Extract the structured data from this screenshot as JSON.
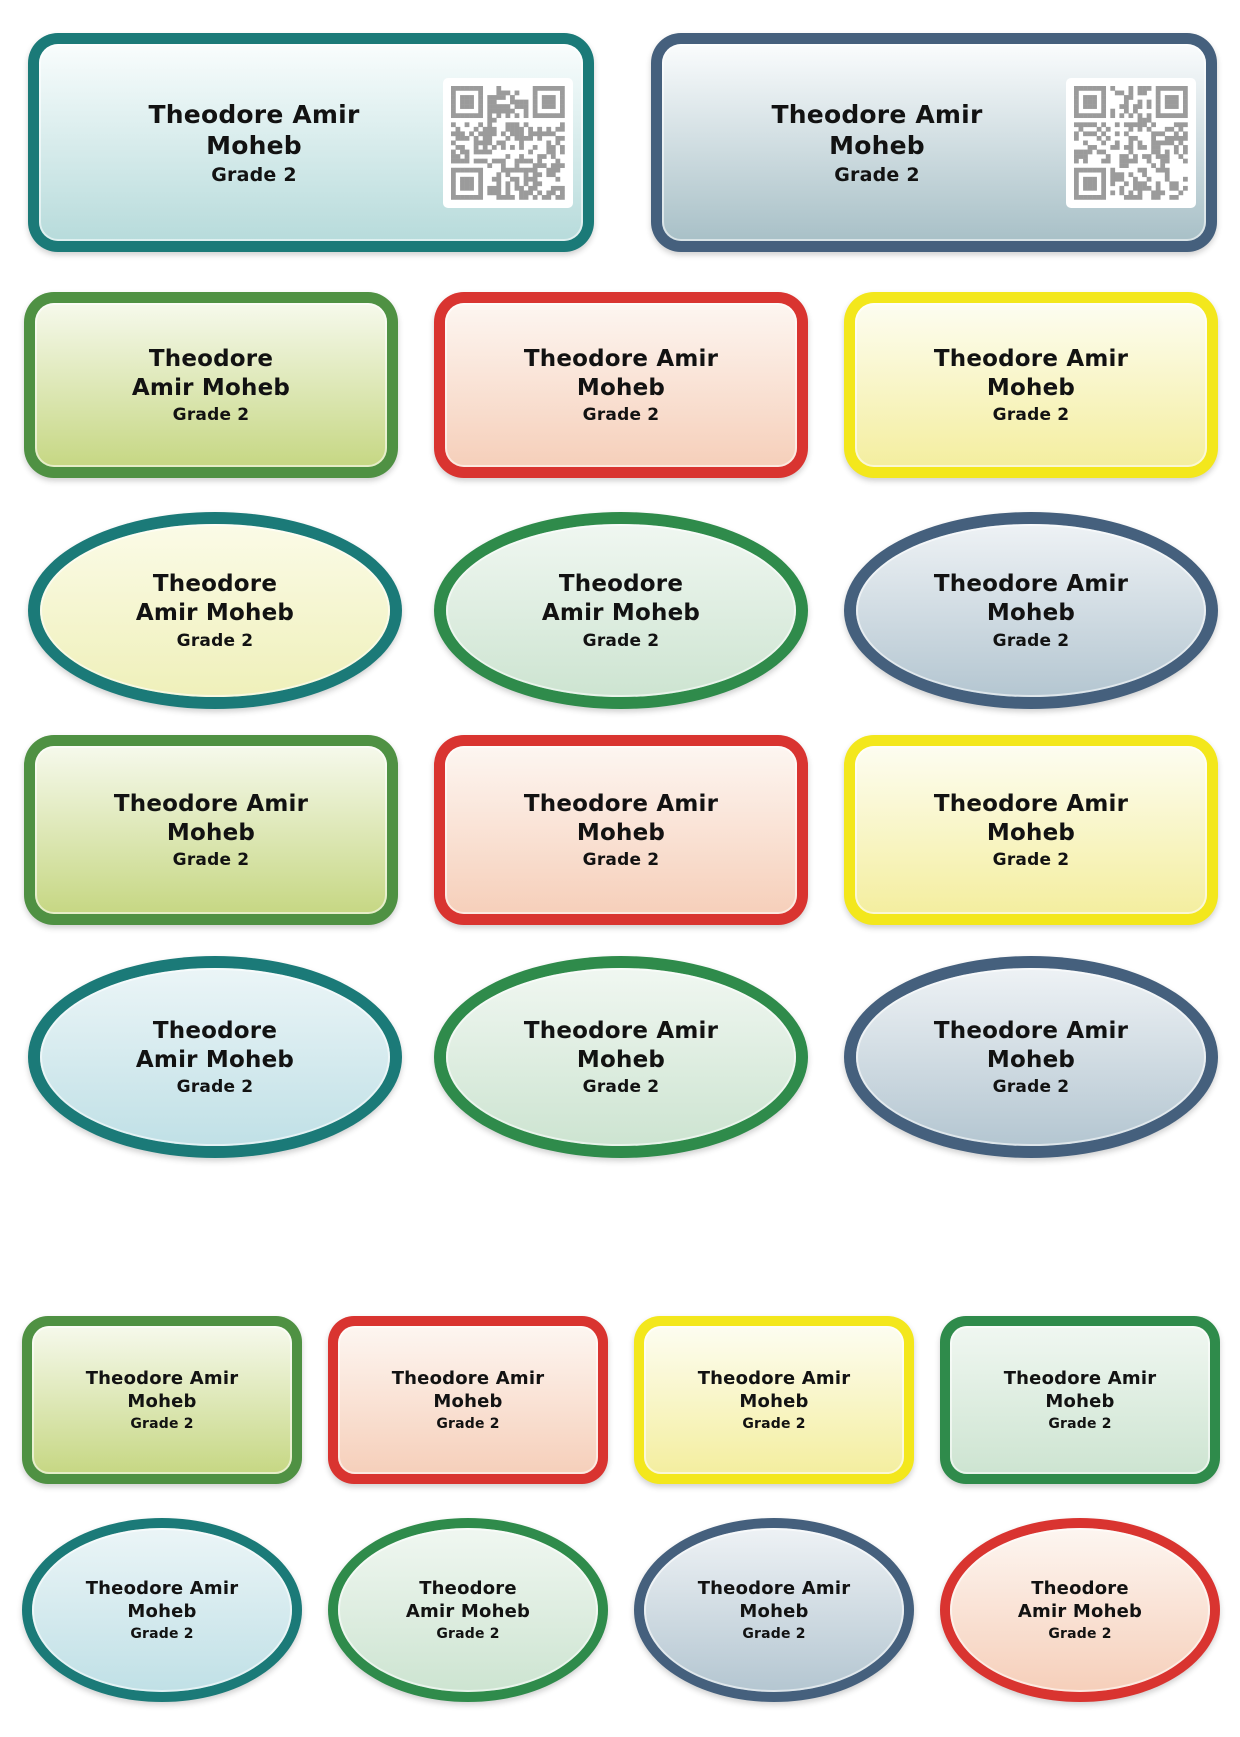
{
  "sheet": {
    "background": "#ffffff",
    "text_color": "#121212"
  },
  "student": {
    "full_name": "Theodore Amir Moheb",
    "grade": "Grade 2"
  },
  "qr": {
    "module_color": "#9b9b9b",
    "background": "#ffffff"
  },
  "themes": {
    "tealCyan": {
      "border": "#1b7a78",
      "fill_top": "#f9fdfd",
      "fill_bottom": "#b7dbdb"
    },
    "slateSteel": {
      "border": "#45607d",
      "fill_top": "#fafcfd",
      "fill_bottom": "#a8c0c7"
    },
    "limeGreen": {
      "border": "#4f9143",
      "fill_top": "#f6f9ec",
      "fill_bottom": "#c6d783"
    },
    "redPeach": {
      "border": "#d93430",
      "fill_top": "#fdf6f1",
      "fill_bottom": "#f6cfba"
    },
    "yellow": {
      "border": "#f3e71c",
      "fill_top": "#fdfdf1",
      "fill_bottom": "#f4ee9f"
    },
    "tealYellow": {
      "border": "#1b7a78",
      "fill_top": "#fbfbe7",
      "fill_bottom": "#eff0ba"
    },
    "greenMint": {
      "border": "#2f8b4b",
      "fill_top": "#f0f7f1",
      "fill_bottom": "#cde4d1"
    },
    "slateBlue": {
      "border": "#45607d",
      "fill_top": "#eef2f5",
      "fill_bottom": "#b4c6d1"
    },
    "tealBlue": {
      "border": "#1b7a78",
      "fill_top": "#ebf5f7",
      "fill_bottom": "#c0e0e6"
    }
  },
  "labels": [
    {
      "slot": "r1c1",
      "shape": "rect",
      "size": "lg",
      "theme": "tealCyan",
      "name_lines": [
        "Theodore Amir",
        "Moheb"
      ],
      "grade": "Grade 2",
      "qr": true
    },
    {
      "slot": "r1c2",
      "shape": "rect",
      "size": "lg",
      "theme": "slateSteel",
      "name_lines": [
        "Theodore Amir",
        "Moheb"
      ],
      "grade": "Grade 2",
      "qr": true
    },
    {
      "slot": "r2c1",
      "shape": "rect",
      "size": "md",
      "theme": "limeGreen",
      "name_lines": [
        "Theodore",
        "Amir Moheb"
      ],
      "grade": "Grade 2",
      "qr": false
    },
    {
      "slot": "r2c2",
      "shape": "rect",
      "size": "md",
      "theme": "redPeach",
      "name_lines": [
        "Theodore Amir",
        "Moheb"
      ],
      "grade": "Grade 2",
      "qr": false
    },
    {
      "slot": "r2c3",
      "shape": "rect",
      "size": "md",
      "theme": "yellow",
      "name_lines": [
        "Theodore Amir",
        "Moheb"
      ],
      "grade": "Grade 2",
      "qr": false
    },
    {
      "slot": "r3c1",
      "shape": "oval",
      "size": "md",
      "theme": "tealYellow",
      "name_lines": [
        "Theodore",
        "Amir Moheb"
      ],
      "grade": "Grade 2",
      "qr": false
    },
    {
      "slot": "r3c2",
      "shape": "oval",
      "size": "md",
      "theme": "greenMint",
      "name_lines": [
        "Theodore",
        "Amir Moheb"
      ],
      "grade": "Grade 2",
      "qr": false
    },
    {
      "slot": "r3c3",
      "shape": "oval",
      "size": "md",
      "theme": "slateBlue",
      "name_lines": [
        "Theodore Amir",
        "Moheb"
      ],
      "grade": "Grade 2",
      "qr": false
    },
    {
      "slot": "r4c1",
      "shape": "rect",
      "size": "md",
      "theme": "limeGreen",
      "name_lines": [
        "Theodore Amir",
        "Moheb"
      ],
      "grade": "Grade 2",
      "qr": false
    },
    {
      "slot": "r4c2",
      "shape": "rect",
      "size": "md",
      "theme": "redPeach",
      "name_lines": [
        "Theodore Amir",
        "Moheb"
      ],
      "grade": "Grade 2",
      "qr": false
    },
    {
      "slot": "r4c3",
      "shape": "rect",
      "size": "md",
      "theme": "yellow",
      "name_lines": [
        "Theodore Amir",
        "Moheb"
      ],
      "grade": "Grade 2",
      "qr": false
    },
    {
      "slot": "r5c1",
      "shape": "oval",
      "size": "md",
      "theme": "tealBlue",
      "name_lines": [
        "Theodore",
        "Amir Moheb"
      ],
      "grade": "Grade 2",
      "qr": false
    },
    {
      "slot": "r5c2",
      "shape": "oval",
      "size": "md",
      "theme": "greenMint",
      "name_lines": [
        "Theodore Amir",
        "Moheb"
      ],
      "grade": "Grade 2",
      "qr": false
    },
    {
      "slot": "r5c3",
      "shape": "oval",
      "size": "md",
      "theme": "slateBlue",
      "name_lines": [
        "Theodore Amir",
        "Moheb"
      ],
      "grade": "Grade 2",
      "qr": false
    },
    {
      "slot": "r6c1",
      "shape": "rect",
      "size": "sm",
      "theme": "limeGreen",
      "name_lines": [
        "Theodore Amir",
        "Moheb"
      ],
      "grade": "Grade 2",
      "qr": false
    },
    {
      "slot": "r6c2",
      "shape": "rect",
      "size": "sm",
      "theme": "redPeach",
      "name_lines": [
        "Theodore Amir",
        "Moheb"
      ],
      "grade": "Grade 2",
      "qr": false
    },
    {
      "slot": "r6c3",
      "shape": "rect",
      "size": "sm",
      "theme": "yellow",
      "name_lines": [
        "Theodore Amir",
        "Moheb"
      ],
      "grade": "Grade 2",
      "qr": false
    },
    {
      "slot": "r6c4",
      "shape": "rect",
      "size": "sm",
      "theme": "greenMint",
      "name_lines": [
        "Theodore Amir",
        "Moheb"
      ],
      "grade": "Grade 2",
      "qr": false
    },
    {
      "slot": "r7c1",
      "shape": "oval",
      "size": "sm",
      "theme": "tealBlue",
      "name_lines": [
        "Theodore Amir",
        "Moheb"
      ],
      "grade": "Grade 2",
      "qr": false
    },
    {
      "slot": "r7c2",
      "shape": "oval",
      "size": "sm",
      "theme": "greenMint",
      "name_lines": [
        "Theodore",
        "Amir Moheb"
      ],
      "grade": "Grade 2",
      "qr": false
    },
    {
      "slot": "r7c3",
      "shape": "oval",
      "size": "sm",
      "theme": "slateBlue",
      "name_lines": [
        "Theodore Amir",
        "Moheb"
      ],
      "grade": "Grade 2",
      "qr": false
    },
    {
      "slot": "r7c4",
      "shape": "oval",
      "size": "sm",
      "theme": "redPeach",
      "name_lines": [
        "Theodore",
        "Amir Moheb"
      ],
      "grade": "Grade 2",
      "qr": false
    }
  ]
}
